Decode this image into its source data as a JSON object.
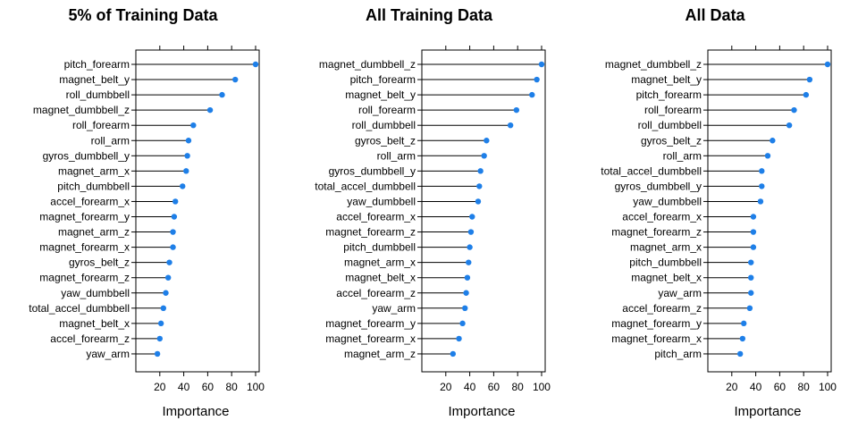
{
  "chart_data": [
    {
      "type": "dot",
      "title": "5% of Training Data",
      "xlabel": "Importance",
      "xlim": [
        0,
        103
      ],
      "xticks": [
        20,
        40,
        60,
        80,
        100
      ],
      "categories": [
        "pitch_forearm",
        "magnet_belt_y",
        "roll_dumbbell",
        "magnet_dumbbell_z",
        "roll_forearm",
        "roll_arm",
        "gyros_dumbbell_y",
        "magnet_arm_x",
        "pitch_dumbbell",
        "accel_forearm_x",
        "magnet_forearm_y",
        "magnet_arm_z",
        "magnet_forearm_x",
        "gyros_belt_z",
        "magnet_forearm_z",
        "yaw_dumbbell",
        "total_accel_dumbbell",
        "magnet_belt_x",
        "accel_forearm_z",
        "yaw_arm"
      ],
      "values": [
        100,
        83,
        72,
        62,
        48,
        44,
        43,
        42,
        39,
        33,
        32,
        31,
        31,
        28,
        27,
        25,
        23,
        21,
        20,
        18
      ]
    },
    {
      "type": "dot",
      "title": "All Training Data",
      "xlabel": "Importance",
      "xlim": [
        0,
        103
      ],
      "xticks": [
        20,
        40,
        60,
        80,
        100
      ],
      "categories": [
        "magnet_dumbbell_z",
        "pitch_forearm",
        "magnet_belt_y",
        "roll_forearm",
        "roll_dumbbell",
        "gyros_belt_z",
        "roll_arm",
        "gyros_dumbbell_y",
        "total_accel_dumbbell",
        "yaw_dumbbell",
        "accel_forearm_x",
        "magnet_forearm_z",
        "pitch_dumbbell",
        "magnet_arm_x",
        "magnet_belt_x",
        "accel_forearm_z",
        "yaw_arm",
        "magnet_forearm_y",
        "magnet_forearm_x",
        "magnet_arm_z"
      ],
      "values": [
        100,
        96,
        92,
        79,
        74,
        54,
        52,
        49,
        48,
        47,
        42,
        41,
        40,
        39,
        38,
        37,
        36,
        34,
        31,
        26
      ]
    },
    {
      "type": "dot",
      "title": "All Data",
      "xlabel": "Importance",
      "xlim": [
        0,
        103
      ],
      "xticks": [
        20,
        40,
        60,
        80,
        100
      ],
      "categories": [
        "magnet_dumbbell_z",
        "magnet_belt_y",
        "pitch_forearm",
        "roll_forearm",
        "roll_dumbbell",
        "gyros_belt_z",
        "roll_arm",
        "total_accel_dumbbell",
        "gyros_dumbbell_y",
        "yaw_dumbbell",
        "accel_forearm_x",
        "magnet_forearm_z",
        "magnet_arm_x",
        "pitch_dumbbell",
        "magnet_belt_x",
        "yaw_arm",
        "accel_forearm_z",
        "magnet_forearm_y",
        "magnet_forearm_x",
        "pitch_arm"
      ],
      "values": [
        100,
        85,
        82,
        72,
        68,
        54,
        50,
        45,
        45,
        44,
        38,
        38,
        38,
        36,
        36,
        36,
        35,
        30,
        29,
        27
      ]
    }
  ],
  "colors": {
    "point": "#1e7fe8",
    "line": "#000000",
    "axis": "#000000"
  }
}
